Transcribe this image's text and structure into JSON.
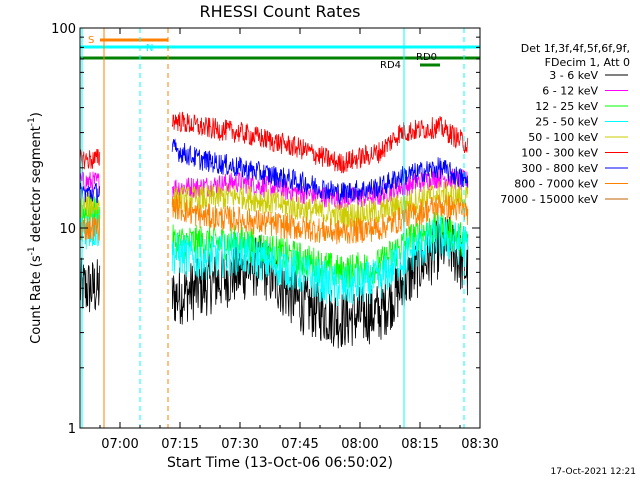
{
  "chart_data": {
    "type": "line",
    "title": "RHESSI Count Rates",
    "xlabel": "Start Time (13-Oct-06 06:50:02)",
    "ylabel": "Count Rate (s",
    "ylabel_sup": "-1",
    "ylabel_mid": " detector segment",
    "ylabel_sup2": "-1",
    "ylabel_end": ")",
    "yscale": "log",
    "ylim": [
      1,
      100
    ],
    "xlim_minutes_after_0650": [
      0,
      100
    ],
    "x_ticks": [
      "07:00",
      "07:15",
      "07:30",
      "07:45",
      "08:00",
      "08:15",
      "08:30"
    ],
    "y_ticks": [
      "1",
      "10",
      "100"
    ],
    "legend": {
      "header": [
        "Det 1f,3f,4f,5f,6f,9f,",
        "FDecim 1, Att 0"
      ],
      "entries": [
        "3 - 6 keV",
        "6 - 12 keV",
        "12 - 25 keV",
        "25 - 50 keV",
        "50 - 100 keV",
        "100 - 300 keV",
        "300 - 800 keV",
        "800 - 7000 keV",
        "7000 - 15000 keV"
      ]
    },
    "data_gaps": [
      [
        "06:55",
        "07:13"
      ],
      [
        "08:27",
        "08:30"
      ]
    ],
    "markers": {
      "S": "S",
      "N": "N",
      "RD0": "RD0",
      "RD4": "RD4"
    },
    "series": [
      {
        "name": "3 - 6 keV",
        "color": "#000000",
        "noise": 0.07,
        "x": [
          "06:50",
          "06:54",
          "07:13",
          "07:20",
          "07:30",
          "07:35",
          "07:45",
          "07:55",
          "08:05",
          "08:10",
          "08:15",
          "08:20",
          "08:22",
          "08:27"
        ],
        "values": [
          5.0,
          5.0,
          4.5,
          5.0,
          6.0,
          6.5,
          4.2,
          3.5,
          3.8,
          5.0,
          6.5,
          8.0,
          8.3,
          6.0
        ]
      },
      {
        "name": "6 - 12 keV",
        "color": "#ff00ff",
        "noise": 0.025,
        "x": [
          "06:50",
          "06:54",
          "07:13",
          "07:20",
          "07:30",
          "07:45",
          "07:55",
          "08:05",
          "08:10",
          "08:15",
          "08:20",
          "08:27"
        ],
        "values": [
          17,
          17,
          16,
          16,
          17,
          15,
          14,
          14.5,
          16,
          17,
          18,
          17
        ]
      },
      {
        "name": "12 - 25 keV",
        "color": "#00ff00",
        "noise": 0.04,
        "x": [
          "06:50",
          "06:54",
          "07:13",
          "07:20",
          "07:30",
          "07:45",
          "07:55",
          "08:05",
          "08:10",
          "08:15",
          "08:20",
          "08:27"
        ],
        "values": [
          12,
          12,
          8.5,
          8.5,
          8.5,
          7.0,
          6.0,
          6.5,
          8.0,
          9.5,
          10,
          8.5
        ]
      },
      {
        "name": "25 - 50 keV",
        "color": "#00ffff",
        "noise": 0.05,
        "x": [
          "06:50",
          "06:54",
          "07:13",
          "07:20",
          "07:30",
          "07:45",
          "07:55",
          "08:05",
          "08:10",
          "08:15",
          "08:20",
          "08:27"
        ],
        "values": [
          10,
          10,
          7.5,
          7.0,
          7.5,
          6.0,
          5.0,
          5.5,
          7.0,
          8.0,
          9.0,
          8.0
        ]
      },
      {
        "name": "50 - 100 keV",
        "color": "#cccc00",
        "noise": 0.03,
        "x": [
          "06:50",
          "06:54",
          "07:13",
          "07:20",
          "07:30",
          "07:45",
          "07:55",
          "08:05",
          "08:10",
          "08:15",
          "08:20",
          "08:27"
        ],
        "values": [
          13,
          13,
          14,
          14,
          14.5,
          12.5,
          11.5,
          12,
          13,
          14,
          15,
          14
        ]
      },
      {
        "name": "100 - 300 keV",
        "color": "#ff0000",
        "noise": 0.025,
        "x": [
          "06:50",
          "06:54",
          "07:13",
          "07:20",
          "07:30",
          "07:45",
          "07:55",
          "08:05",
          "08:10",
          "08:15",
          "08:20",
          "08:27"
        ],
        "values": [
          22,
          22,
          35,
          32,
          30,
          25,
          21,
          24,
          30,
          31,
          32,
          26
        ]
      },
      {
        "name": "300 - 800 keV",
        "color": "#0000ff",
        "noise": 0.025,
        "x": [
          "06:50",
          "06:54",
          "07:13",
          "07:20",
          "07:30",
          "07:45",
          "07:55",
          "08:05",
          "08:10",
          "08:15",
          "08:20",
          "08:27"
        ],
        "values": [
          15,
          15,
          25,
          22,
          20,
          17,
          15,
          16,
          18,
          19,
          20,
          17
        ]
      },
      {
        "name": "800 - 7000 keV",
        "color": "#ff8000",
        "noise": 0.03,
        "x": [
          "06:50",
          "06:54",
          "07:13",
          "07:20",
          "07:30",
          "07:45",
          "07:55",
          "08:05",
          "08:10",
          "08:15",
          "08:20",
          "08:27"
        ],
        "values": [
          10,
          10,
          13,
          11.5,
          11,
          10,
          9.5,
          10,
          11,
          12,
          13,
          12
        ]
      },
      {
        "name": "7000 - 15000 keV",
        "color": "#c06000",
        "noise": 0.0,
        "x": [],
        "values": []
      }
    ]
  },
  "footer": {
    "timestamp": "17-Oct-2021 12:21"
  }
}
